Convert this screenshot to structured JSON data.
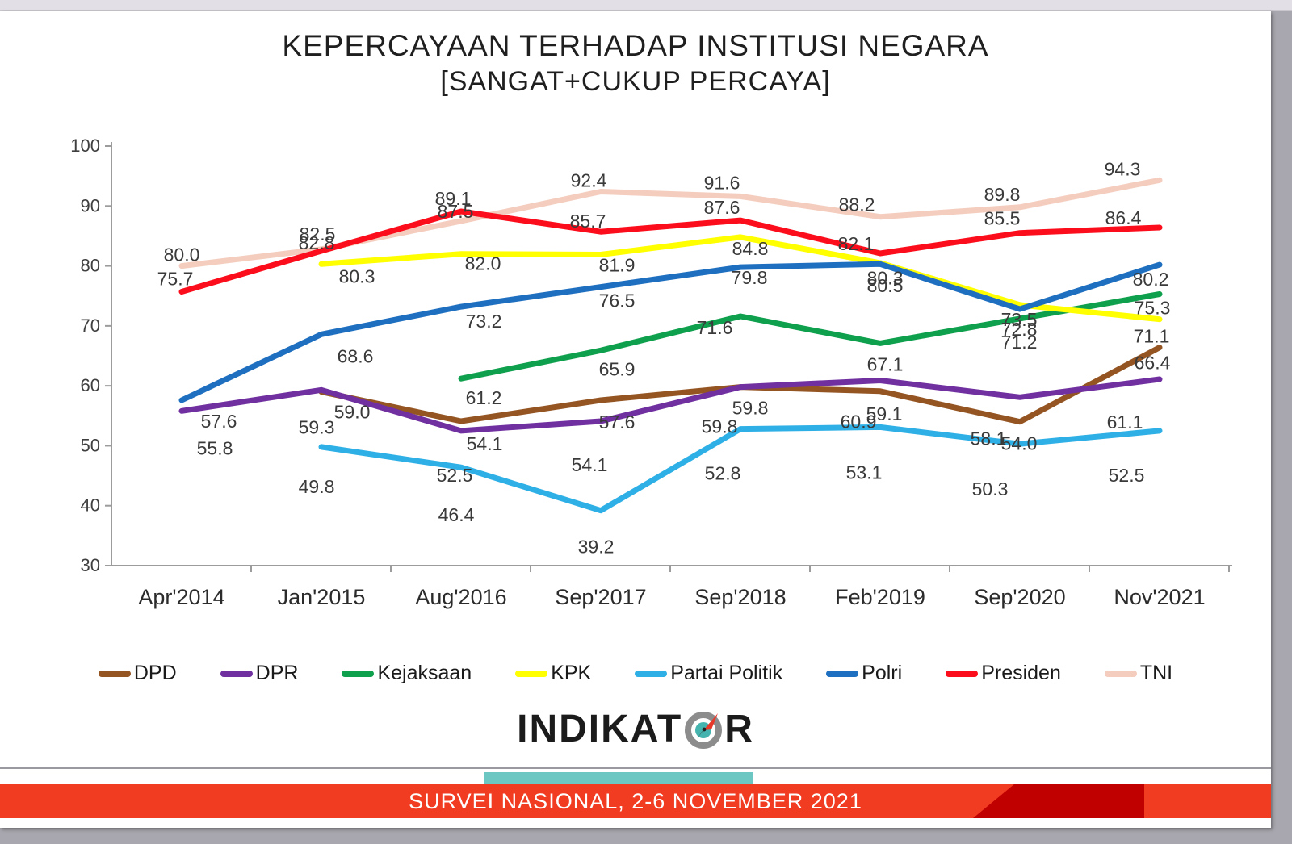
{
  "page": {
    "banner_text": "SURVEI NASIONAL, 2-6 NOVEMBER 2021",
    "logo_text_pre": "INDIKAT",
    "logo_text_post": "R",
    "logo_icon": "compass-icon"
  },
  "chart_data": {
    "type": "line",
    "title": "KEPERCAYAAN TERHADAP INSTITUSI NEGARA",
    "subtitle": "[SANGAT+CUKUP PERCAYA]",
    "grid": false,
    "legend_position": "bottom",
    "categories": [
      "Apr'2014",
      "Jan'2015",
      "Aug'2016",
      "Sep'2017",
      "Sep'2018",
      "Feb'2019",
      "Sep'2020",
      "Nov'2021"
    ],
    "y_axis": {
      "min": 30,
      "max": 100,
      "step": 10
    },
    "series": [
      {
        "name": "DPD",
        "color": "#955523",
        "values": [
          null,
          59.0,
          54.1,
          57.6,
          59.8,
          59.1,
          54.0,
          66.4
        ],
        "label_offsets": [
          null,
          [
            38,
            25
          ],
          [
            29,
            28
          ],
          [
            20,
            27
          ],
          [
            12,
            26
          ],
          [
            5,
            28
          ],
          [
            -1,
            27
          ],
          [
            -9,
            19
          ]
        ]
      },
      {
        "name": "DPR",
        "color": "#7030a0",
        "values": [
          55.8,
          59.3,
          52.5,
          54.1,
          59.8,
          60.9,
          58.1,
          61.1
        ],
        "label_offsets": [
          [
            41,
            46
          ],
          [
            -6,
            46
          ],
          [
            -8,
            55
          ],
          [
            -14,
            54
          ],
          [
            -26,
            49
          ],
          [
            -27,
            51
          ],
          [
            -39,
            51
          ],
          [
            -43,
            53
          ]
        ]
      },
      {
        "name": "Kejaksaan",
        "color": "#0fa04e",
        "values": [
          null,
          null,
          61.2,
          65.9,
          71.6,
          67.1,
          71.2,
          75.3
        ],
        "label_offsets": [
          null,
          null,
          [
            28,
            24
          ],
          [
            20,
            23
          ],
          [
            -32,
            14
          ],
          [
            6,
            26
          ],
          [
            -1,
            29
          ],
          [
            -9,
            17
          ]
        ]
      },
      {
        "name": "KPK",
        "color": "#ffff00",
        "values": [
          null,
          80.3,
          82.0,
          81.9,
          84.8,
          80.5,
          73.5,
          71.1
        ],
        "label_offsets": [
          null,
          [
            44,
            15
          ],
          [
            27,
            12
          ],
          [
            20,
            13
          ],
          [
            12,
            14
          ],
          [
            6,
            28
          ],
          [
            -1,
            18
          ],
          [
            -10,
            21
          ]
        ]
      },
      {
        "name": "Partai Politik",
        "color": "#2eb0e6",
        "values": [
          null,
          49.8,
          46.4,
          39.2,
          52.8,
          53.1,
          50.3,
          52.5
        ],
        "label_offsets": [
          null,
          [
            -6,
            49
          ],
          [
            -6,
            59
          ],
          [
            -6,
            45
          ],
          [
            -22,
            55
          ],
          [
            -20,
            56
          ],
          [
            -37,
            56
          ],
          [
            -41,
            55
          ]
        ]
      },
      {
        "name": "Polri",
        "color": "#1e6fc0",
        "values": [
          57.6,
          68.6,
          73.2,
          76.5,
          79.8,
          80.3,
          72.8,
          80.2
        ],
        "label_offsets": [
          [
            46,
            26
          ],
          [
            42,
            27
          ],
          [
            28,
            18
          ],
          [
            20,
            17
          ],
          [
            11,
            13
          ],
          [
            6,
            17
          ],
          [
            -1,
            25
          ],
          [
            -11,
            18
          ]
        ]
      },
      {
        "name": "Presiden",
        "color": "#fc0d1b",
        "values": [
          75.7,
          82.5,
          89.1,
          85.7,
          87.6,
          82.1,
          85.5,
          86.4
        ],
        "label_offsets": [
          [
            -8,
            -16
          ],
          [
            -5,
            -21
          ],
          [
            -10,
            -16
          ],
          [
            -16,
            -13
          ],
          [
            -23,
            -16
          ],
          [
            -30,
            -12
          ],
          [
            -22,
            -18
          ],
          [
            -45,
            -12
          ]
        ]
      },
      {
        "name": "TNI",
        "color": "#f4cdbe",
        "values": [
          80.0,
          82.8,
          87.5,
          92.4,
          91.6,
          88.2,
          89.8,
          94.3
        ],
        "label_offsets": [
          [
            0,
            -14
          ],
          [
            -6,
            -8
          ],
          [
            -7,
            -12
          ],
          [
            -15,
            -14
          ],
          [
            -23,
            -17
          ],
          [
            -29,
            -15
          ],
          [
            -22,
            -16
          ],
          [
            -46,
            -14
          ]
        ]
      }
    ]
  },
  "style": {
    "axis_color": "#9c9c9c",
    "tick_label_color": "#3f3f3f",
    "data_label_color": "#3a3a3a",
    "banner_color": "#f23c22",
    "banner_accent_color": "#c00000",
    "teal_color": "#6cc6c2",
    "compass_ring_color": "#8c8c8c",
    "compass_center_color": "#45b3ae",
    "compass_needle_color": "#e8392b"
  }
}
